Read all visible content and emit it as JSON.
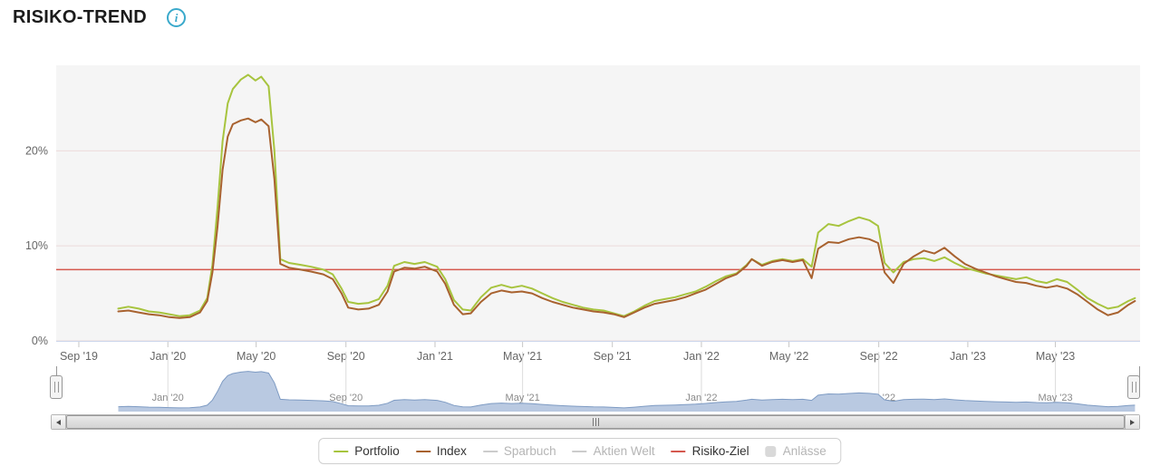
{
  "header": {
    "title": "RISIKO-TREND",
    "info_icon": "i"
  },
  "chart_data": {
    "type": "line",
    "title": "RISIKO-TREND",
    "xlabel": "",
    "ylabel": "",
    "ylim": [
      0,
      29
    ],
    "x_range": [
      "2019-08-01",
      "2023-08-25"
    ],
    "grid": "horizontal",
    "legend_position": "bottom-center",
    "yticks": [
      {
        "value": 0,
        "label": "0%"
      },
      {
        "value": 10,
        "label": "10%"
      },
      {
        "value": 20,
        "label": "20%"
      }
    ],
    "xticks": [
      {
        "date": "2019-09-01",
        "label": "Sep '19"
      },
      {
        "date": "2020-01-01",
        "label": "Jan '20"
      },
      {
        "date": "2020-05-01",
        "label": "May '20"
      },
      {
        "date": "2020-09-01",
        "label": "Sep '20"
      },
      {
        "date": "2021-01-01",
        "label": "Jan '21"
      },
      {
        "date": "2021-05-01",
        "label": "May '21"
      },
      {
        "date": "2021-09-01",
        "label": "Sep '21"
      },
      {
        "date": "2022-01-01",
        "label": "Jan '22"
      },
      {
        "date": "2022-05-01",
        "label": "May '22"
      },
      {
        "date": "2022-09-01",
        "label": "Sep '22"
      },
      {
        "date": "2023-01-01",
        "label": "Jan '23"
      },
      {
        "date": "2023-05-01",
        "label": "May '23"
      }
    ],
    "target_line": {
      "label": "Risiko-Ziel",
      "value": 7.5,
      "color": "#d5584e"
    },
    "dates": [
      "2019-10-25",
      "2019-11-08",
      "2019-11-22",
      "2019-12-06",
      "2019-12-20",
      "2020-01-03",
      "2020-01-17",
      "2020-01-31",
      "2020-02-14",
      "2020-02-24",
      "2020-03-02",
      "2020-03-09",
      "2020-03-16",
      "2020-03-23",
      "2020-03-30",
      "2020-04-10",
      "2020-04-20",
      "2020-04-30",
      "2020-05-08",
      "2020-05-18",
      "2020-05-26",
      "2020-06-03",
      "2020-06-15",
      "2020-07-01",
      "2020-07-15",
      "2020-08-01",
      "2020-08-14",
      "2020-08-26",
      "2020-09-04",
      "2020-09-18",
      "2020-10-02",
      "2020-10-16",
      "2020-10-28",
      "2020-11-06",
      "2020-11-20",
      "2020-12-04",
      "2020-12-18",
      "2021-01-04",
      "2021-01-15",
      "2021-01-27",
      "2021-02-08",
      "2021-02-19",
      "2021-03-05",
      "2021-03-19",
      "2021-04-02",
      "2021-04-16",
      "2021-04-30",
      "2021-05-14",
      "2021-05-28",
      "2021-06-11",
      "2021-06-25",
      "2021-07-09",
      "2021-07-23",
      "2021-08-06",
      "2021-08-20",
      "2021-09-03",
      "2021-09-17",
      "2021-10-01",
      "2021-10-15",
      "2021-10-29",
      "2021-11-12",
      "2021-11-26",
      "2021-12-10",
      "2021-12-24",
      "2022-01-07",
      "2022-01-21",
      "2022-02-04",
      "2022-02-18",
      "2022-03-04",
      "2022-03-11",
      "2022-03-25",
      "2022-04-08",
      "2022-04-22",
      "2022-05-06",
      "2022-05-20",
      "2022-06-01",
      "2022-06-10",
      "2022-06-24",
      "2022-07-08",
      "2022-07-22",
      "2022-08-05",
      "2022-08-19",
      "2022-08-31",
      "2022-09-09",
      "2022-09-21",
      "2022-10-05",
      "2022-10-19",
      "2022-11-02",
      "2022-11-16",
      "2022-11-30",
      "2022-12-14",
      "2022-12-28",
      "2023-01-11",
      "2023-01-25",
      "2023-02-08",
      "2023-02-22",
      "2023-03-08",
      "2023-03-22",
      "2023-04-05",
      "2023-04-19",
      "2023-05-03",
      "2023-05-17",
      "2023-05-31",
      "2023-06-14",
      "2023-06-28",
      "2023-07-12",
      "2023-07-26",
      "2023-08-09",
      "2023-08-18"
    ],
    "series": [
      {
        "name": "Portfolio",
        "color": "#a7c43e",
        "values": [
          3.4,
          3.6,
          3.4,
          3.1,
          3.0,
          2.8,
          2.6,
          2.7,
          3.2,
          4.5,
          8.0,
          14.0,
          21.0,
          25.0,
          26.5,
          27.5,
          28.0,
          27.4,
          27.8,
          26.8,
          20.0,
          8.6,
          8.2,
          8.0,
          7.8,
          7.5,
          7.0,
          5.5,
          4.1,
          3.9,
          4.0,
          4.4,
          5.8,
          7.9,
          8.3,
          8.1,
          8.3,
          7.8,
          6.5,
          4.3,
          3.3,
          3.2,
          4.6,
          5.6,
          5.9,
          5.6,
          5.8,
          5.5,
          5.0,
          4.5,
          4.1,
          3.8,
          3.5,
          3.3,
          3.2,
          2.9,
          2.6,
          3.1,
          3.7,
          4.2,
          4.4,
          4.6,
          4.9,
          5.2,
          5.7,
          6.3,
          6.8,
          7.1,
          8.0,
          8.6,
          8.0,
          8.4,
          8.6,
          8.4,
          8.6,
          7.8,
          11.4,
          12.3,
          12.1,
          12.6,
          13.0,
          12.7,
          12.1,
          8.2,
          7.2,
          8.3,
          8.6,
          8.7,
          8.4,
          8.8,
          8.2,
          7.7,
          7.4,
          7.1,
          6.9,
          6.7,
          6.5,
          6.7,
          6.3,
          6.1,
          6.5,
          6.2,
          5.4,
          4.5,
          3.9,
          3.4,
          3.6,
          4.2,
          4.5
        ]
      },
      {
        "name": "Index",
        "color": "#a8622f",
        "values": [
          3.1,
          3.2,
          3.0,
          2.8,
          2.7,
          2.5,
          2.4,
          2.5,
          3.0,
          4.2,
          7.2,
          12.0,
          18.0,
          21.5,
          22.8,
          23.2,
          23.4,
          23.0,
          23.3,
          22.6,
          17.0,
          8.1,
          7.7,
          7.5,
          7.3,
          7.0,
          6.5,
          5.0,
          3.5,
          3.3,
          3.4,
          3.8,
          5.2,
          7.3,
          7.7,
          7.6,
          7.8,
          7.3,
          6.0,
          3.8,
          2.8,
          2.9,
          4.1,
          5.0,
          5.3,
          5.1,
          5.2,
          5.0,
          4.5,
          4.1,
          3.8,
          3.5,
          3.3,
          3.1,
          3.0,
          2.8,
          2.5,
          3.0,
          3.5,
          3.9,
          4.1,
          4.3,
          4.6,
          5.0,
          5.4,
          6.0,
          6.6,
          7.0,
          7.9,
          8.6,
          7.9,
          8.3,
          8.5,
          8.3,
          8.5,
          6.6,
          9.7,
          10.4,
          10.3,
          10.7,
          10.9,
          10.7,
          10.3,
          7.2,
          6.1,
          8.1,
          8.9,
          9.5,
          9.2,
          9.8,
          8.9,
          8.1,
          7.6,
          7.2,
          6.8,
          6.5,
          6.2,
          6.1,
          5.8,
          5.6,
          5.8,
          5.5,
          4.9,
          4.1,
          3.3,
          2.7,
          3.0,
          3.8,
          4.2
        ]
      }
    ],
    "navigator": {
      "labels": [
        {
          "date": "2020-01-01",
          "label": "Jan '20"
        },
        {
          "date": "2020-09-01",
          "label": "Sep '20"
        },
        {
          "date": "2021-05-01",
          "label": "May '21"
        },
        {
          "date": "2022-01-01",
          "label": "Jan '22"
        },
        {
          "date": "2022-09-01",
          "label": "Sep '22"
        },
        {
          "date": "2023-05-01",
          "label": "May '23"
        }
      ]
    },
    "colors": {
      "plot_bg": "#f5f5f5",
      "gridline": "#ecdada",
      "axis_line": "#ccd6eb",
      "tick": "#c6c6c6",
      "nav_fill": "#b9c9e1",
      "nav_line": "#7e9bc3",
      "nav_grid": "#dcdcdc",
      "label": "#666666",
      "info_accent": "#3aa9cb"
    }
  },
  "legend": {
    "items": [
      {
        "label": "Portfolio",
        "color": "#a7c43e",
        "type": "line",
        "enabled": true
      },
      {
        "label": "Index",
        "color": "#a8622f",
        "type": "line",
        "enabled": true
      },
      {
        "label": "Sparbuch",
        "color": "#cccccc",
        "type": "line",
        "enabled": false
      },
      {
        "label": "Aktien Welt",
        "color": "#cccccc",
        "type": "line",
        "enabled": false
      },
      {
        "label": "Risiko-Ziel",
        "color": "#d5584e",
        "type": "line",
        "enabled": true
      },
      {
        "label": "Anlässe",
        "color": "#d9d9d9",
        "type": "box",
        "enabled": false
      }
    ]
  },
  "icons": {
    "info": "info-icon",
    "scroll_left": "left-triangle",
    "scroll_right": "right-triangle",
    "scroll_grip": "grip-lines",
    "nav_handle": "drag-handle"
  }
}
